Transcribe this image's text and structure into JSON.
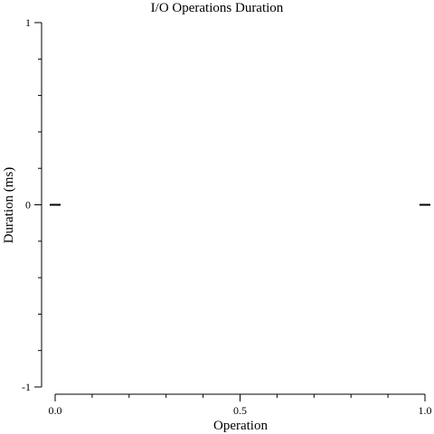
{
  "chart_data": {
    "type": "scatter",
    "title": "I/O Operations Duration",
    "xlabel": "Operation",
    "ylabel": "Duration (ms)",
    "xlim": [
      0,
      1
    ],
    "ylim": [
      -1,
      1
    ],
    "x_ticks": [
      {
        "value": 0,
        "label": "0.0"
      },
      {
        "value": 0.5,
        "label": "0.5"
      },
      {
        "value": 1,
        "label": "1.0"
      }
    ],
    "y_ticks": [
      {
        "value": -1,
        "label": "-1"
      },
      {
        "value": 0,
        "label": "0"
      },
      {
        "value": 1,
        "label": "1"
      }
    ],
    "x_minor_step": 0.1,
    "y_minor_step": 0.2,
    "grid": false,
    "marker": "horizontal-dash",
    "points": [
      {
        "x": 0,
        "y": 0
      },
      {
        "x": 1,
        "y": 0
      }
    ],
    "color": "#000000"
  }
}
